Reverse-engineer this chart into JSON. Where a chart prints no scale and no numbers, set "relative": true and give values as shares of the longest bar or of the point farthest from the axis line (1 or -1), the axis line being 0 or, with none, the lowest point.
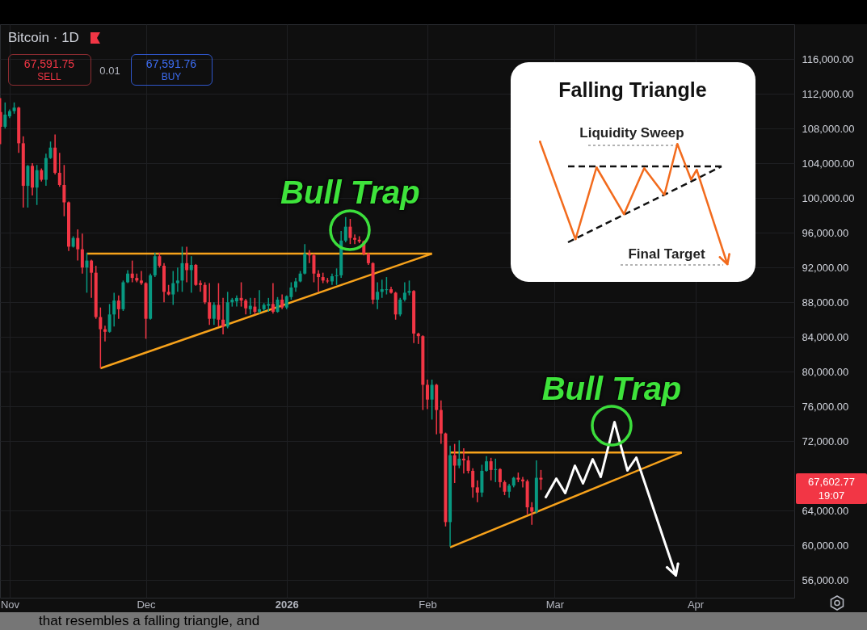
{
  "chart_data": [
    {
      "type": "candlestick",
      "title": "Bitcoin · 1D",
      "x": [
        "2025-10-30",
        "2025-10-31",
        "2025-11-01",
        "2025-11-02",
        "2025-11-03",
        "2025-11-04",
        "2025-11-05",
        "2025-11-06",
        "2025-11-07",
        "2025-11-08",
        "2025-11-09",
        "2025-11-10",
        "2025-11-11",
        "2025-11-12",
        "2025-11-13",
        "2025-11-14",
        "2025-11-15",
        "2025-11-16",
        "2025-11-17",
        "2025-11-18",
        "2025-11-19",
        "2025-11-20",
        "2025-11-21",
        "2025-11-22",
        "2025-11-23",
        "2025-11-24",
        "2025-11-25",
        "2025-11-26",
        "2025-11-27",
        "2025-11-28",
        "2025-11-29",
        "2025-11-30",
        "2025-12-01",
        "2025-12-02",
        "2025-12-03",
        "2025-12-04",
        "2025-12-05",
        "2025-12-06",
        "2025-12-07",
        "2025-12-08",
        "2025-12-09",
        "2025-12-10",
        "2025-12-11",
        "2025-12-12",
        "2025-12-13",
        "2025-12-14",
        "2025-12-15",
        "2025-12-16",
        "2025-12-17",
        "2025-12-18",
        "2025-12-19",
        "2025-12-20",
        "2025-12-21",
        "2025-12-22",
        "2025-12-23",
        "2025-12-24",
        "2025-12-25",
        "2025-12-26",
        "2025-12-27",
        "2025-12-28",
        "2025-12-29",
        "2025-12-30",
        "2025-12-31",
        "2026-01-01",
        "2026-01-02",
        "2026-01-03",
        "2026-01-04",
        "2026-01-05",
        "2026-01-06",
        "2026-01-07",
        "2026-01-08",
        "2026-01-09",
        "2026-01-10",
        "2026-01-11",
        "2026-01-12",
        "2026-01-13",
        "2026-01-14",
        "2026-01-15",
        "2026-01-16",
        "2026-01-17",
        "2026-01-18",
        "2026-01-19",
        "2026-01-20",
        "2026-01-21",
        "2026-01-22",
        "2026-01-23",
        "2026-01-24",
        "2026-01-25",
        "2026-01-26",
        "2026-01-27",
        "2026-01-28",
        "2026-01-29",
        "2026-01-30",
        "2026-01-31",
        "2026-02-01",
        "2026-02-02",
        "2026-02-03",
        "2026-02-04",
        "2026-02-05",
        "2026-02-06",
        "2026-02-07",
        "2026-02-08",
        "2026-02-09",
        "2026-02-10",
        "2026-02-11",
        "2026-02-12",
        "2026-02-13",
        "2026-02-14",
        "2026-02-15",
        "2026-02-16",
        "2026-02-17",
        "2026-02-18",
        "2026-02-19",
        "2026-02-20",
        "2026-02-21",
        "2026-02-22",
        "2026-02-23",
        "2026-02-24",
        "2026-02-25",
        "2026-02-26"
      ],
      "ohlc": [
        [
          109900,
          111500,
          106200,
          108200
        ],
        [
          108200,
          111000,
          108000,
          109600
        ],
        [
          109400,
          110200,
          109200,
          110000
        ],
        [
          110000,
          111000,
          109700,
          110400
        ],
        [
          110400,
          110500,
          105200,
          106300
        ],
        [
          106300,
          107100,
          98900,
          101400
        ],
        [
          101400,
          103800,
          98900,
          103700
        ],
        [
          103700,
          104000,
          100300,
          101200
        ],
        [
          101200,
          103800,
          99200,
          103200
        ],
        [
          103200,
          103400,
          101900,
          102100
        ],
        [
          102100,
          105100,
          101400,
          104600
        ],
        [
          104600,
          106500,
          104500,
          105800
        ],
        [
          105800,
          107300,
          102700,
          102900
        ],
        [
          102900,
          105200,
          101300,
          101500
        ],
        [
          101500,
          103800,
          97900,
          99500
        ],
        [
          99500,
          99600,
          93900,
          94400
        ],
        [
          94400,
          95600,
          94300,
          95400
        ],
        [
          95400,
          96400,
          92800,
          94100
        ],
        [
          94100,
          95900,
          91300,
          92000
        ],
        [
          92000,
          93700,
          89100,
          92800
        ],
        [
          92800,
          92900,
          88500,
          91400
        ],
        [
          91400,
          92200,
          86100,
          86300
        ],
        [
          86300,
          87400,
          80400,
          84900
        ],
        [
          84900,
          85300,
          83500,
          84600
        ],
        [
          84600,
          87800,
          84500,
          86600
        ],
        [
          86600,
          89100,
          85200,
          88200
        ],
        [
          88200,
          88800,
          86100,
          87200
        ],
        [
          87200,
          90500,
          87000,
          90300
        ],
        [
          90300,
          91700,
          90200,
          91300
        ],
        [
          91300,
          92800,
          90300,
          90800
        ],
        [
          90800,
          91300,
          90300,
          90500
        ],
        [
          90500,
          91600,
          90000,
          90200
        ],
        [
          90200,
          90300,
          83800,
          86100
        ],
        [
          86100,
          91300,
          86000,
          91100
        ],
        [
          91100,
          93700,
          90900,
          93300
        ],
        [
          93300,
          93700,
          92000,
          92200
        ],
        [
          92200,
          92500,
          88000,
          89200
        ],
        [
          89200,
          90000,
          88800,
          88900
        ],
        [
          88900,
          91600,
          87700,
          90200
        ],
        [
          90200,
          92000,
          89200,
          90500
        ],
        [
          90500,
          94400,
          89200,
          92500
        ],
        [
          92500,
          94400,
          90300,
          91700
        ],
        [
          91700,
          93300,
          89100,
          92300
        ],
        [
          92300,
          92400,
          89900,
          90000
        ],
        [
          90200,
          90500,
          89200,
          90000
        ],
        [
          90000,
          90300,
          87800,
          88000
        ],
        [
          88000,
          90200,
          85400,
          86100
        ],
        [
          86100,
          88000,
          85400,
          87700
        ],
        [
          87700,
          90200,
          85200,
          86000
        ],
        [
          86000,
          88500,
          84300,
          85200
        ],
        [
          85200,
          89200,
          85000,
          88000
        ],
        [
          88000,
          88500,
          87500,
          88300
        ],
        [
          88100,
          88800,
          87500,
          88500
        ],
        [
          88500,
          90300,
          87500,
          88200
        ],
        [
          88200,
          88400,
          86600,
          87300
        ],
        [
          87200,
          88500,
          86600,
          87600
        ],
        [
          87500,
          88500,
          86600,
          86900
        ],
        [
          86900,
          89400,
          86700,
          87200
        ],
        [
          87200,
          87900,
          87000,
          87700
        ],
        [
          87600,
          88500,
          86900,
          87800
        ],
        [
          87800,
          90200,
          86700,
          86900
        ],
        [
          86900,
          88600,
          86800,
          88300
        ],
        [
          88300,
          88900,
          87200,
          87400
        ],
        [
          87400,
          88800,
          87200,
          88700
        ],
        [
          88600,
          90300,
          88300,
          89700
        ],
        [
          89700,
          90800,
          89200,
          90400
        ],
        [
          90400,
          91600,
          90300,
          91300
        ],
        [
          91300,
          94700,
          91200,
          93600
        ],
        [
          93600,
          94000,
          92500,
          93400
        ],
        [
          93400,
          93600,
          90300,
          91300
        ],
        [
          91300,
          91700,
          89200,
          90900
        ],
        [
          90900,
          91400,
          90200,
          90500
        ],
        [
          90500,
          90800,
          90200,
          90400
        ],
        [
          90400,
          91300,
          90000,
          91000
        ],
        [
          91000,
          91900,
          90000,
          91100
        ],
        [
          91100,
          96200,
          90800,
          95100
        ],
        [
          95100,
          97800,
          94900,
          96700
        ],
        [
          96700,
          97600,
          94700,
          95400
        ],
        [
          95400,
          95800,
          94700,
          95200
        ],
        [
          95200,
          95600,
          94800,
          95000
        ],
        [
          95000,
          95100,
          93400,
          93600
        ],
        [
          93600,
          93700,
          92300,
          92500
        ],
        [
          92500,
          92600,
          87800,
          88300
        ],
        [
          88300,
          90300,
          87200,
          89200
        ],
        [
          89200,
          90600,
          88500,
          89500
        ],
        [
          89400,
          90900,
          88900,
          89500
        ],
        [
          89500,
          89800,
          89000,
          89100
        ],
        [
          89100,
          89200,
          86000,
          86600
        ],
        [
          86600,
          88500,
          86400,
          88300
        ],
        [
          88300,
          90300,
          88100,
          89100
        ],
        [
          89100,
          90500,
          88800,
          89300
        ],
        [
          89300,
          89400,
          83300,
          84400
        ],
        [
          84400,
          84500,
          83200,
          84100
        ],
        [
          84100,
          84200,
          75600,
          78500
        ],
        [
          78500,
          79100,
          75700,
          76800
        ],
        [
          76800,
          79100,
          74500,
          78500
        ],
        [
          78500,
          78600,
          72800,
          75600
        ],
        [
          75600,
          76700,
          71700,
          72900
        ],
        [
          72900,
          73000,
          62200,
          62700
        ],
        [
          62700,
          71500,
          59900,
          70400
        ],
        [
          70400,
          71700,
          67200,
          69200
        ],
        [
          69200,
          72100,
          68900,
          70000
        ],
        [
          70000,
          71200,
          68300,
          69800
        ],
        [
          69800,
          70300,
          68300,
          68600
        ],
        [
          68600,
          68900,
          65500,
          66700
        ],
        [
          66700,
          67500,
          65000,
          66100
        ],
        [
          66100,
          69300,
          65600,
          68600
        ],
        [
          68600,
          70300,
          68500,
          69700
        ],
        [
          69700,
          70100,
          67500,
          68700
        ],
        [
          68700,
          70000,
          67300,
          68800
        ],
        [
          68800,
          68900,
          66700,
          67300
        ],
        [
          67300,
          67500,
          65800,
          66200
        ],
        [
          66200,
          67100,
          65500,
          66900
        ],
        [
          66900,
          67900,
          66700,
          67800
        ],
        [
          67800,
          68400,
          67300,
          67600
        ],
        [
          67600,
          67900,
          66700,
          67400
        ],
        [
          67400,
          67600,
          63600,
          64400
        ],
        [
          64400,
          65000,
          62400,
          63900
        ],
        [
          63900,
          69800,
          63700,
          67800
        ],
        [
          67800,
          68700,
          66400,
          67600
        ]
      ],
      "colors": [
        "#f23645",
        "#089981",
        "#089981",
        "#089981",
        "#f23645",
        "#f23645",
        "#089981",
        "#f23645",
        "#089981",
        "#f23645",
        "#089981",
        "#089981",
        "#f23645",
        "#f23645",
        "#f23645",
        "#f23645",
        "#089981",
        "#f23645",
        "#f23645",
        "#089981",
        "#f23645",
        "#f23645",
        "#f23645",
        "#f23645",
        "#089981",
        "#089981",
        "#f23645",
        "#089981",
        "#089981",
        "#f23645",
        "#f23645",
        "#f23645",
        "#f23645",
        "#089981",
        "#089981",
        "#f23645",
        "#f23645",
        "#f23645",
        "#089981",
        "#089981",
        "#089981",
        "#f23645",
        "#089981",
        "#f23645",
        "#f23645",
        "#f23645",
        "#f23645",
        "#089981",
        "#f23645",
        "#f23645",
        "#089981",
        "#089981",
        "#089981",
        "#f23645",
        "#f23645",
        "#089981",
        "#f23645",
        "#089981",
        "#089981",
        "#089981",
        "#f23645",
        "#089981",
        "#f23645",
        "#089981",
        "#089981",
        "#089981",
        "#089981",
        "#089981",
        "#f23645",
        "#f23645",
        "#f23645",
        "#f23645",
        "#f23645",
        "#089981",
        "#089981",
        "#089981",
        "#089981",
        "#f23645",
        "#f23645",
        "#f23645",
        "#f23645",
        "#f23645",
        "#f23645",
        "#089981",
        "#089981",
        "#089981",
        "#f23645",
        "#f23645",
        "#089981",
        "#089981",
        "#089981",
        "#f23645",
        "#f23645",
        "#f23645",
        "#f23645",
        "#089981",
        "#f23645",
        "#f23645",
        "#f23645",
        "#089981",
        "#f23645",
        "#089981",
        "#f23645",
        "#f23645",
        "#f23645",
        "#f23645",
        "#089981",
        "#089981",
        "#f23645",
        "#089981",
        "#f23645",
        "#f23645",
        "#089981",
        "#089981",
        "#f23645",
        "#f23645",
        "#f23645",
        "#f23645",
        "#089981",
        "#f23645"
      ],
      "series": [
        {
          "type": "line",
          "color": "#f7a21b",
          "x": [
            "2025-11-18",
            "2026-02-02"
          ],
          "values": [
            93600,
            93600
          ]
        },
        {
          "type": "line",
          "color": "#f7a21b",
          "x": [
            "2025-11-21",
            "2026-02-02"
          ],
          "values": [
            80400,
            93600
          ]
        },
        {
          "type": "line",
          "color": "#f7a21b",
          "x": [
            "2026-02-06",
            "2026-03-29"
          ],
          "values": [
            70700,
            70700
          ]
        },
        {
          "type": "line",
          "color": "#f7a21b",
          "x": [
            "2026-02-06",
            "2026-03-29"
          ],
          "values": [
            59800,
            70700
          ]
        }
      ],
      "xlim": [
        "2025-10-29T21:00",
        "2026-04-22T19:00"
      ],
      "xticks": [
        {
          "value": "2025-11-01",
          "label": "Nov"
        },
        {
          "value": "2025-12-01",
          "label": "Dec"
        },
        {
          "value": "2026-01-01",
          "label": "2026"
        },
        {
          "value": "2026-02-01",
          "label": "Feb"
        },
        {
          "value": "2026-03-01",
          "label": "Mar"
        },
        {
          "value": "2026-04-01",
          "label": "Apr"
        }
      ],
      "ylim": [
        54000,
        120000
      ],
      "yticks": [
        {
          "value": 56000,
          "label": "56,000.00"
        },
        {
          "value": 60000,
          "label": "60,000.00"
        },
        {
          "value": 64000,
          "label": "64,000.00"
        },
        {
          "value": 72000,
          "label": "72,000.00"
        },
        {
          "value": 76000,
          "label": "76,000.00"
        },
        {
          "value": 80000,
          "label": "80,000.00"
        },
        {
          "value": 84000,
          "label": "84,000.00"
        },
        {
          "value": 88000,
          "label": "88,000.00"
        },
        {
          "value": 92000,
          "label": "92,000.00"
        },
        {
          "value": 96000,
          "label": "96,000.00"
        },
        {
          "value": 100000,
          "label": "100,000.00"
        },
        {
          "value": 104000,
          "label": "104,000.00"
        },
        {
          "value": 108000,
          "label": "108,000.00"
        },
        {
          "value": 112000,
          "label": "112,000.00"
        },
        {
          "value": 116000,
          "label": "116,000.00"
        }
      ],
      "grid": true,
      "annotations": [
        {
          "text": "Bull Trap",
          "x": "2026-01-15",
          "y": 96300
        },
        "Bull Trap",
        "67,602.77",
        "67,591.75",
        "SELL",
        "0.01",
        "67,591.76",
        "BUY",
        "19:07",
        "that resembles a falling triangle, and"
      ]
    },
    {
      "type": "line",
      "title": "Falling Triangle",
      "relative": true,
      "categories": [
        null,
        null
      ],
      "series": [
        {
          "color": "#111111",
          "line_style": "dashed",
          "values": [
            1,
            1
          ]
        },
        {
          "color": "#111111",
          "line_style": "dashed",
          "values": [
            0,
            1
          ]
        }
      ],
      "annotations": [
        "Liquidity Sweep",
        "Final Target"
      ]
    }
  ]
}
